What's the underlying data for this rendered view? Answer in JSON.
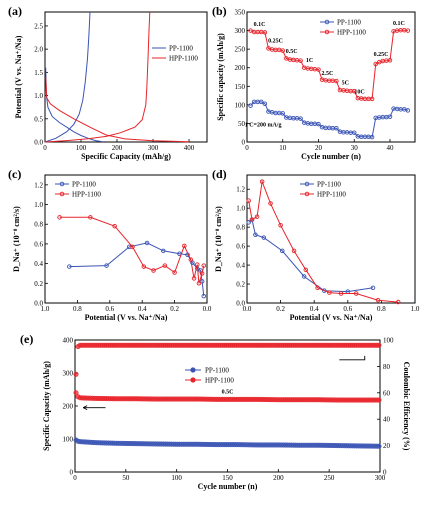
{
  "colors": {
    "blue": "#3a54b4",
    "red": "#e8232a",
    "axis": "#000000"
  },
  "chart_data": [
    {
      "type": "line",
      "panel": "(a)",
      "xlabel": "Specific Capacity (mAh/g)",
      "ylabel": "Potential (V vs. Na⁺/Na)",
      "xlim": [
        0,
        450
      ],
      "ylim": [
        0,
        2.8
      ],
      "xticks": [
        0,
        100,
        200,
        300,
        400
      ],
      "yticks": [
        0.0,
        0.5,
        1.0,
        1.5,
        2.0,
        2.5
      ],
      "yticklabels": [
        "0.0",
        "0.5",
        "1.0",
        "1.5",
        "2.0",
        "2.5"
      ],
      "legend_position": "center-right",
      "series": [
        {
          "name": "PP-1100",
          "color": "blue",
          "segments": [
            [
              [
                2,
                1.6
              ],
              [
                4,
                1.0
              ],
              [
                8,
                0.75
              ],
              [
                20,
                0.55
              ],
              [
                40,
                0.42
              ],
              [
                60,
                0.32
              ],
              [
                80,
                0.22
              ],
              [
                100,
                0.14
              ],
              [
                120,
                0.08
              ],
              [
                140,
                0.03
              ],
              [
                160,
                0.005
              ]
            ],
            [
              [
                0,
                0.0
              ],
              [
                30,
                0.08
              ],
              [
                60,
                0.22
              ],
              [
                80,
                0.38
              ],
              [
                95,
                0.6
              ],
              [
                105,
                0.9
              ],
              [
                112,
                1.3
              ],
              [
                118,
                1.8
              ],
              [
                122,
                2.3
              ],
              [
                125,
                2.8
              ]
            ]
          ]
        },
        {
          "name": "HPP-1100",
          "color": "red",
          "segments": [
            [
              [
                2,
                1.4
              ],
              [
                5,
                0.95
              ],
              [
                15,
                0.82
              ],
              [
                40,
                0.68
              ],
              [
                80,
                0.5
              ],
              [
                130,
                0.3
              ],
              [
                170,
                0.15
              ],
              [
                220,
                0.07
              ],
              [
                300,
                0.025
              ],
              [
                400,
                0.005
              ]
            ],
            [
              [
                0,
                0.0
              ],
              [
                60,
                0.03
              ],
              [
                120,
                0.07
              ],
              [
                170,
                0.12
              ],
              [
                210,
                0.2
              ],
              [
                250,
                0.32
              ],
              [
                270,
                0.48
              ],
              [
                280,
                0.8
              ],
              [
                283,
                1.2
              ],
              [
                286,
                1.8
              ],
              [
                289,
                2.4
              ],
              [
                291,
                2.8
              ]
            ]
          ]
        }
      ]
    },
    {
      "type": "line",
      "panel": "(b)",
      "xlabel": "Cycle number (n)",
      "ylabel": "Specific capacity (mAh/g)",
      "xlim": [
        0,
        47
      ],
      "ylim": [
        0,
        350
      ],
      "xticks": [
        0,
        10,
        20,
        30,
        40
      ],
      "yticks": [
        0,
        50,
        100,
        150,
        200,
        250,
        300,
        350
      ],
      "legend_position": "top-center",
      "annotations": [
        {
          "text": "0.1C",
          "x": 3.5,
          "y": 312
        },
        {
          "text": "0.25C",
          "x": 8,
          "y": 268
        },
        {
          "text": "0.5C",
          "x": 12.5,
          "y": 240
        },
        {
          "text": "1C",
          "x": 17.5,
          "y": 215
        },
        {
          "text": "2.5C",
          "x": 22.5,
          "y": 180
        },
        {
          "text": "5C",
          "x": 27.5,
          "y": 155
        },
        {
          "text": "10C",
          "x": 31.5,
          "y": 130
        },
        {
          "text": "0.25C",
          "x": 37.5,
          "y": 232
        },
        {
          "text": "0.1C",
          "x": 42.5,
          "y": 315
        },
        {
          "text": "1 C=200 mA/g",
          "x": 4.5,
          "y": 42
        }
      ],
      "series": [
        {
          "name": "PP-1100",
          "color": "blue",
          "marker": "circle",
          "x": [
            1,
            2,
            3,
            4,
            5,
            6,
            7,
            8,
            9,
            10,
            11,
            12,
            13,
            14,
            15,
            16,
            17,
            18,
            19,
            20,
            21,
            22,
            23,
            24,
            25,
            26,
            27,
            28,
            29,
            30,
            31,
            32,
            33,
            34,
            35,
            36,
            37,
            38,
            39,
            40,
            41,
            42,
            43,
            44,
            45
          ],
          "values": [
            98,
            108,
            108,
            108,
            103,
            82,
            80,
            78,
            78,
            77,
            66,
            65,
            64,
            64,
            63,
            52,
            50,
            49,
            49,
            48,
            40,
            38,
            38,
            37,
            37,
            28,
            26,
            26,
            25,
            25,
            15,
            14,
            14,
            14,
            13,
            65,
            66,
            67,
            67,
            68,
            90,
            89,
            88,
            88,
            85
          ]
        },
        {
          "name": "HPP-1100",
          "color": "red",
          "marker": "circle",
          "x": [
            1,
            2,
            3,
            4,
            5,
            6,
            7,
            8,
            9,
            10,
            11,
            12,
            13,
            14,
            15,
            16,
            17,
            18,
            19,
            20,
            21,
            22,
            23,
            24,
            25,
            26,
            27,
            28,
            29,
            30,
            31,
            32,
            33,
            34,
            35,
            36,
            37,
            38,
            39,
            40,
            41,
            42,
            43,
            44,
            45
          ],
          "values": [
            300,
            296,
            296,
            296,
            295,
            252,
            249,
            248,
            248,
            246,
            225,
            222,
            221,
            220,
            219,
            200,
            198,
            197,
            196,
            195,
            168,
            166,
            165,
            165,
            164,
            140,
            139,
            138,
            137,
            137,
            118,
            117,
            116,
            116,
            116,
            210,
            215,
            218,
            219,
            220,
            298,
            300,
            301,
            301,
            300
          ]
        }
      ]
    },
    {
      "type": "line",
      "panel": "(c)",
      "xlabel": "Potential (V vs. Na⁺/Na)",
      "ylabel": "D_Na⁺ (10⁻⁸ cm²/s)",
      "xlim": [
        1.0,
        0.0
      ],
      "ylim": [
        0.0,
        1.3
      ],
      "xticks": [
        1.0,
        0.8,
        0.6,
        0.4,
        0.2,
        0.0
      ],
      "xticklabels": [
        "1.0",
        "0.8",
        "0.6",
        "0.4",
        "0.2",
        "0.0"
      ],
      "yticks": [
        0.0,
        0.2,
        0.4,
        0.6,
        0.8,
        1.0,
        1.2
      ],
      "yticklabels": [
        "0.0",
        "0.2",
        "0.4",
        "0.6",
        "0.8",
        "1.0",
        "1.2"
      ],
      "legend_position": "top-left",
      "series": [
        {
          "name": "PP-1100",
          "color": "blue",
          "marker": "circle",
          "x": [
            0.85,
            0.62,
            0.48,
            0.37,
            0.27,
            0.17,
            0.12,
            0.09,
            0.06,
            0.04,
            0.03,
            0.02
          ],
          "values": [
            0.37,
            0.38,
            0.57,
            0.61,
            0.53,
            0.5,
            0.49,
            0.41,
            0.35,
            0.33,
            0.22,
            0.07
          ]
        },
        {
          "name": "HPP-1100",
          "color": "red",
          "marker": "circle",
          "x": [
            0.91,
            0.72,
            0.57,
            0.46,
            0.39,
            0.33,
            0.26,
            0.2,
            0.14,
            0.1,
            0.08,
            0.06,
            0.05,
            0.03,
            0.02
          ],
          "values": [
            0.87,
            0.87,
            0.78,
            0.57,
            0.37,
            0.33,
            0.38,
            0.31,
            0.58,
            0.44,
            0.25,
            0.39,
            0.2,
            0.3,
            0.38
          ]
        }
      ]
    },
    {
      "type": "line",
      "panel": "(d)",
      "xlabel": "Potential (V vs. Na⁺/Na)",
      "ylabel": "D_Na⁺ (10⁻⁸ cm²/s)",
      "xlim": [
        0.0,
        1.0
      ],
      "ylim": [
        0.0,
        1.35
      ],
      "xticks": [
        0.0,
        0.2,
        0.4,
        0.6,
        0.8,
        1.0
      ],
      "xticklabels": [
        "0.0",
        "0.2",
        "0.4",
        "0.6",
        "0.8",
        "1.0"
      ],
      "yticks": [
        0.0,
        0.2,
        0.4,
        0.6,
        0.8,
        1.0,
        1.2
      ],
      "yticklabels": [
        "0.0",
        "0.2",
        "0.4",
        "0.6",
        "0.8",
        "1.0",
        "1.2"
      ],
      "legend_position": "top-right",
      "series": [
        {
          "name": "PP-1100",
          "color": "blue",
          "marker": "circle",
          "x": [
            0.01,
            0.03,
            0.05,
            0.1,
            0.21,
            0.34,
            0.46,
            0.6,
            0.75
          ],
          "values": [
            0.85,
            0.88,
            0.72,
            0.69,
            0.55,
            0.28,
            0.13,
            0.12,
            0.16
          ]
        },
        {
          "name": "HPP-1100",
          "color": "red",
          "marker": "circle",
          "x": [
            0.01,
            0.03,
            0.06,
            0.09,
            0.14,
            0.2,
            0.28,
            0.35,
            0.42,
            0.49,
            0.56,
            0.65,
            0.78,
            0.9
          ],
          "values": [
            1.08,
            0.88,
            0.91,
            1.28,
            1.05,
            0.82,
            0.55,
            0.35,
            0.16,
            0.11,
            0.1,
            0.1,
            0.03,
            0.01
          ]
        }
      ]
    },
    {
      "type": "scatter",
      "panel": "(e)",
      "xlabel": "Cycle number (n)",
      "ylabel": "Specific Capacity (mAh/g)",
      "ylabel_right": "Coulombic Efficiency (%)",
      "xlim": [
        0,
        300
      ],
      "ylim": [
        0,
        400
      ],
      "ylim_right": [
        0,
        100
      ],
      "xticks": [
        0,
        50,
        100,
        150,
        200,
        250,
        300
      ],
      "yticks": [
        0,
        100,
        200,
        300,
        400
      ],
      "yticks_right": [
        0,
        20,
        40,
        60,
        80,
        100
      ],
      "legend_position": "top-center",
      "annotations": [
        {
          "text": "0.5C",
          "x": 150,
          "y": 238
        }
      ],
      "series": [
        {
          "name": "PP-1100",
          "color": "blue",
          "axis": "left",
          "kind": "capacity",
          "x": [
            1,
            2,
            3,
            5,
            10,
            20,
            40,
            60,
            80,
            100,
            120,
            140,
            160,
            180,
            200,
            220,
            240,
            260,
            280,
            300
          ],
          "values": [
            97,
            95,
            93,
            92,
            91,
            89,
            87,
            86,
            85,
            84,
            84,
            83,
            83,
            82,
            82,
            81,
            81,
            80,
            79,
            78
          ]
        },
        {
          "name": "HPP-1100",
          "color": "red",
          "axis": "left",
          "kind": "capacity",
          "x": [
            1,
            2,
            3,
            5,
            10,
            20,
            40,
            60,
            80,
            100,
            120,
            140,
            160,
            180,
            200,
            220,
            240,
            260,
            280,
            300
          ],
          "values": [
            240,
            232,
            228,
            225,
            224,
            223,
            222,
            222,
            221,
            221,
            221,
            220,
            220,
            220,
            219,
            219,
            219,
            218,
            218,
            218
          ]
        },
        {
          "name": "HPP-1100",
          "color": "red",
          "axis": "right",
          "kind": "efficiency",
          "x": [
            1,
            2,
            3,
            5,
            10,
            20,
            40,
            60,
            80,
            100,
            120,
            140,
            160,
            180,
            200,
            220,
            240,
            260,
            280,
            300
          ],
          "values": [
            74,
            92,
            95,
            96,
            96,
            96,
            96,
            96,
            96,
            96,
            96,
            96,
            96,
            96,
            96,
            96,
            96,
            96,
            96,
            96
          ]
        }
      ]
    }
  ]
}
